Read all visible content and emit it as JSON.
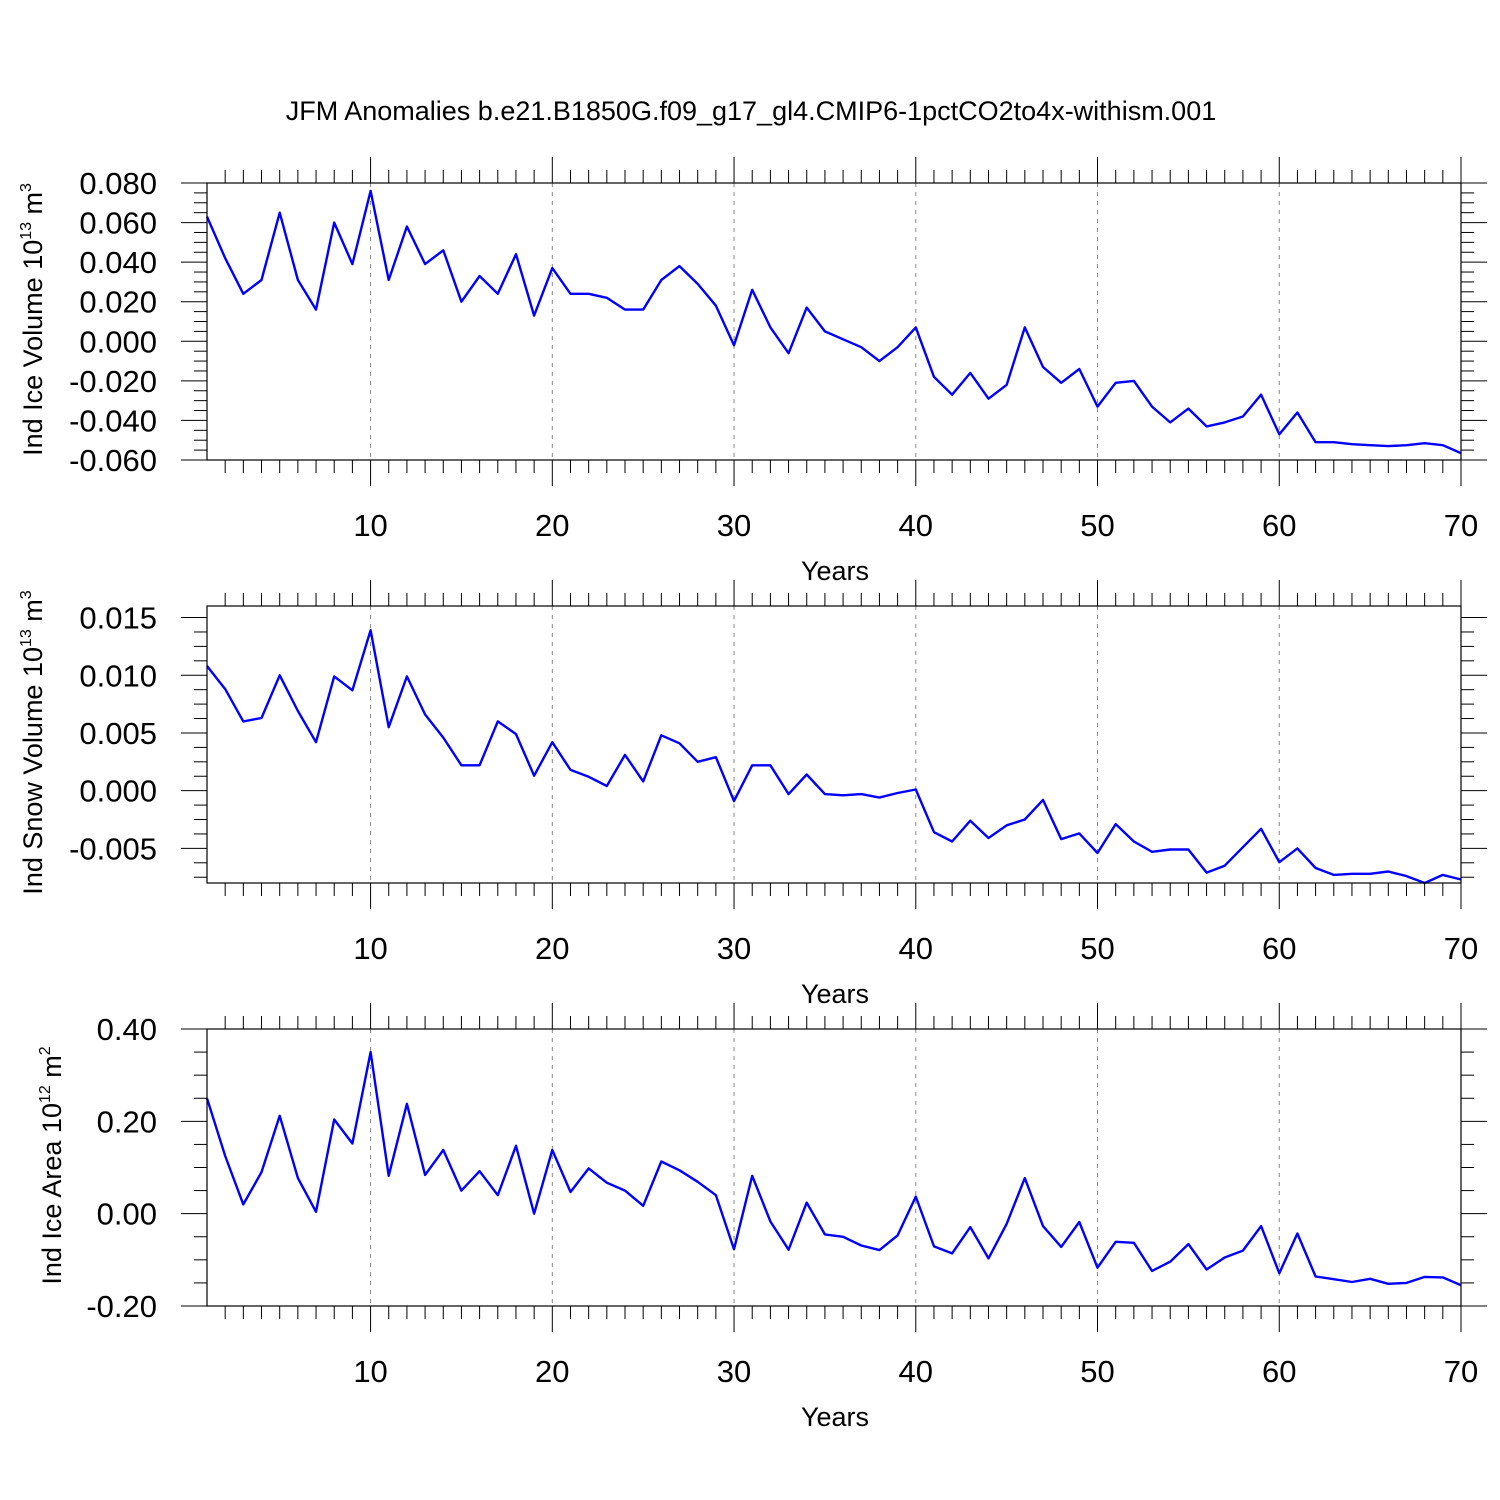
{
  "figure": {
    "title": "JFM Anomalies b.e21.B1850G.f09_g17_gl4.CMIP6-1pctCO2to4x-withism.001",
    "line_color": "#0000ff",
    "grid_color": "#888888"
  },
  "chart_data": [
    {
      "type": "line",
      "xlabel": "Years",
      "ylabel_prefix": "Ind Ice Volume 10",
      "ylabel_exp": "13",
      "ylabel_unit": " m",
      "ylabel_unit_exp": "3",
      "xlim": [
        1,
        70
      ],
      "ylim": [
        -0.06,
        0.08
      ],
      "xticks": [
        10,
        20,
        30,
        40,
        50,
        60,
        70
      ],
      "yticks": [
        -0.06,
        -0.04,
        -0.02,
        0.0,
        0.02,
        0.04,
        0.06,
        0.08
      ],
      "ytick_labels": [
        "-0.060",
        "-0.040",
        "-0.020",
        "0.000",
        "0.020",
        "0.040",
        "0.060",
        "0.080"
      ],
      "grid": "vertical dashed at x ticks",
      "series": [
        {
          "x": [
            1,
            2,
            3,
            4,
            5,
            6,
            7,
            8,
            9,
            10,
            11,
            12,
            13,
            14,
            15,
            16,
            17,
            18,
            19,
            20,
            21,
            22,
            23,
            24,
            25,
            26,
            27,
            28,
            29,
            30,
            31,
            32,
            33,
            34,
            35,
            36,
            37,
            38,
            39,
            40,
            41,
            42,
            43,
            44,
            45,
            46,
            47,
            48,
            49,
            50,
            51,
            52,
            53,
            54,
            55,
            56,
            57,
            58,
            59,
            60,
            61,
            62,
            63,
            64,
            65,
            66,
            67,
            68,
            69,
            70
          ],
          "values": [
            0.063,
            0.042,
            0.024,
            0.031,
            0.065,
            0.031,
            0.016,
            0.06,
            0.039,
            0.076,
            0.031,
            0.058,
            0.039,
            0.046,
            0.02,
            0.033,
            0.024,
            0.044,
            0.013,
            0.037,
            0.024,
            0.024,
            0.022,
            0.016,
            0.016,
            0.031,
            0.038,
            0.029,
            0.018,
            -0.002,
            0.026,
            0.007,
            -0.006,
            0.017,
            0.005,
            0.001,
            -0.003,
            -0.01,
            -0.003,
            0.007,
            -0.018,
            -0.027,
            -0.016,
            -0.029,
            -0.022,
            0.007,
            -0.013,
            -0.021,
            -0.014,
            -0.033,
            -0.021,
            -0.02,
            -0.033,
            -0.041,
            -0.034,
            -0.043,
            -0.041,
            -0.038,
            -0.027,
            -0.047,
            -0.036,
            -0.051,
            -0.051,
            -0.052,
            -0.0525,
            -0.053,
            -0.0525,
            -0.0515,
            -0.0525,
            -0.0565
          ]
        }
      ]
    },
    {
      "type": "line",
      "xlabel": "Years",
      "ylabel_prefix": "Ind Snow Volume 10",
      "ylabel_exp": "13",
      "ylabel_unit": " m",
      "ylabel_unit_exp": "3",
      "xlim": [
        1,
        70
      ],
      "ylim": [
        -0.008,
        0.016
      ],
      "xticks": [
        10,
        20,
        30,
        40,
        50,
        60,
        70
      ],
      "yticks": [
        -0.005,
        0.0,
        0.005,
        0.01,
        0.015
      ],
      "ytick_labels": [
        "-0.005",
        "0.000",
        "0.005",
        "0.010",
        "0.015"
      ],
      "grid": "vertical dashed at x ticks",
      "series": [
        {
          "x": [
            1,
            2,
            3,
            4,
            5,
            6,
            7,
            8,
            9,
            10,
            11,
            12,
            13,
            14,
            15,
            16,
            17,
            18,
            19,
            20,
            21,
            22,
            23,
            24,
            25,
            26,
            27,
            28,
            29,
            30,
            31,
            32,
            33,
            34,
            35,
            36,
            37,
            38,
            39,
            40,
            41,
            42,
            43,
            44,
            45,
            46,
            47,
            48,
            49,
            50,
            51,
            52,
            53,
            54,
            55,
            56,
            57,
            58,
            59,
            60,
            61,
            62,
            63,
            64,
            65,
            66,
            67,
            68,
            69,
            70
          ],
          "values": [
            0.0108,
            0.0088,
            0.006,
            0.0063,
            0.01,
            0.0069,
            0.0042,
            0.0099,
            0.0087,
            0.0139,
            0.0055,
            0.0099,
            0.0066,
            0.0046,
            0.0022,
            0.0022,
            0.006,
            0.0049,
            0.0013,
            0.0042,
            0.0018,
            0.0012,
            0.0004,
            0.0031,
            0.0008,
            0.0048,
            0.0041,
            0.0025,
            0.0029,
            -0.0009,
            0.0022,
            0.0022,
            -0.0003,
            0.0014,
            -0.0003,
            -0.0004,
            -0.0003,
            -0.0006,
            -0.0002,
            0.0001,
            -0.0036,
            -0.0044,
            -0.0026,
            -0.0041,
            -0.003,
            -0.0025,
            -0.0008,
            -0.0042,
            -0.0037,
            -0.0054,
            -0.0029,
            -0.0044,
            -0.0053,
            -0.0051,
            -0.0051,
            -0.0071,
            -0.0065,
            -0.0049,
            -0.0033,
            -0.0062,
            -0.005,
            -0.0067,
            -0.0073,
            -0.0072,
            -0.0072,
            -0.007,
            -0.0074,
            -0.008,
            -0.0073,
            -0.0077
          ]
        }
      ]
    },
    {
      "type": "line",
      "xlabel": "Years",
      "ylabel_prefix": "Ind Ice Area 10",
      "ylabel_exp": "12",
      "ylabel_unit": " m",
      "ylabel_unit_exp": "2",
      "xlim": [
        1,
        70
      ],
      "ylim": [
        -0.2,
        0.4
      ],
      "xticks": [
        10,
        20,
        30,
        40,
        50,
        60,
        70
      ],
      "yticks": [
        -0.2,
        0.0,
        0.2,
        0.4
      ],
      "ytick_labels": [
        "-0.20",
        "0.00",
        "0.20",
        "0.40"
      ],
      "grid": "vertical dashed at x ticks",
      "series": [
        {
          "x": [
            1,
            2,
            3,
            4,
            5,
            6,
            7,
            8,
            9,
            10,
            11,
            12,
            13,
            14,
            15,
            16,
            17,
            18,
            19,
            20,
            21,
            22,
            23,
            24,
            25,
            26,
            27,
            28,
            29,
            30,
            31,
            32,
            33,
            34,
            35,
            36,
            37,
            38,
            39,
            40,
            41,
            42,
            43,
            44,
            45,
            46,
            47,
            48,
            49,
            50,
            51,
            52,
            53,
            54,
            55,
            56,
            57,
            58,
            59,
            60,
            61,
            62,
            63,
            64,
            65,
            66,
            67,
            68,
            69,
            70
          ],
          "values": [
            0.25,
            0.125,
            0.02,
            0.09,
            0.212,
            0.077,
            0.004,
            0.204,
            0.152,
            0.35,
            0.082,
            0.238,
            0.084,
            0.138,
            0.05,
            0.092,
            0.04,
            0.147,
            0.0,
            0.138,
            0.047,
            0.098,
            0.067,
            0.05,
            0.017,
            0.113,
            0.094,
            0.069,
            0.04,
            -0.077,
            0.082,
            -0.017,
            -0.078,
            0.024,
            -0.045,
            -0.05,
            -0.069,
            -0.079,
            -0.047,
            0.037,
            -0.071,
            -0.086,
            -0.029,
            -0.097,
            -0.022,
            0.077,
            -0.027,
            -0.072,
            -0.018,
            -0.117,
            -0.061,
            -0.063,
            -0.124,
            -0.104,
            -0.066,
            -0.121,
            -0.095,
            -0.08,
            -0.027,
            -0.129,
            -0.043,
            -0.136,
            -0.142,
            -0.148,
            -0.141,
            -0.152,
            -0.15,
            -0.137,
            -0.138,
            -0.155
          ]
        }
      ]
    }
  ]
}
